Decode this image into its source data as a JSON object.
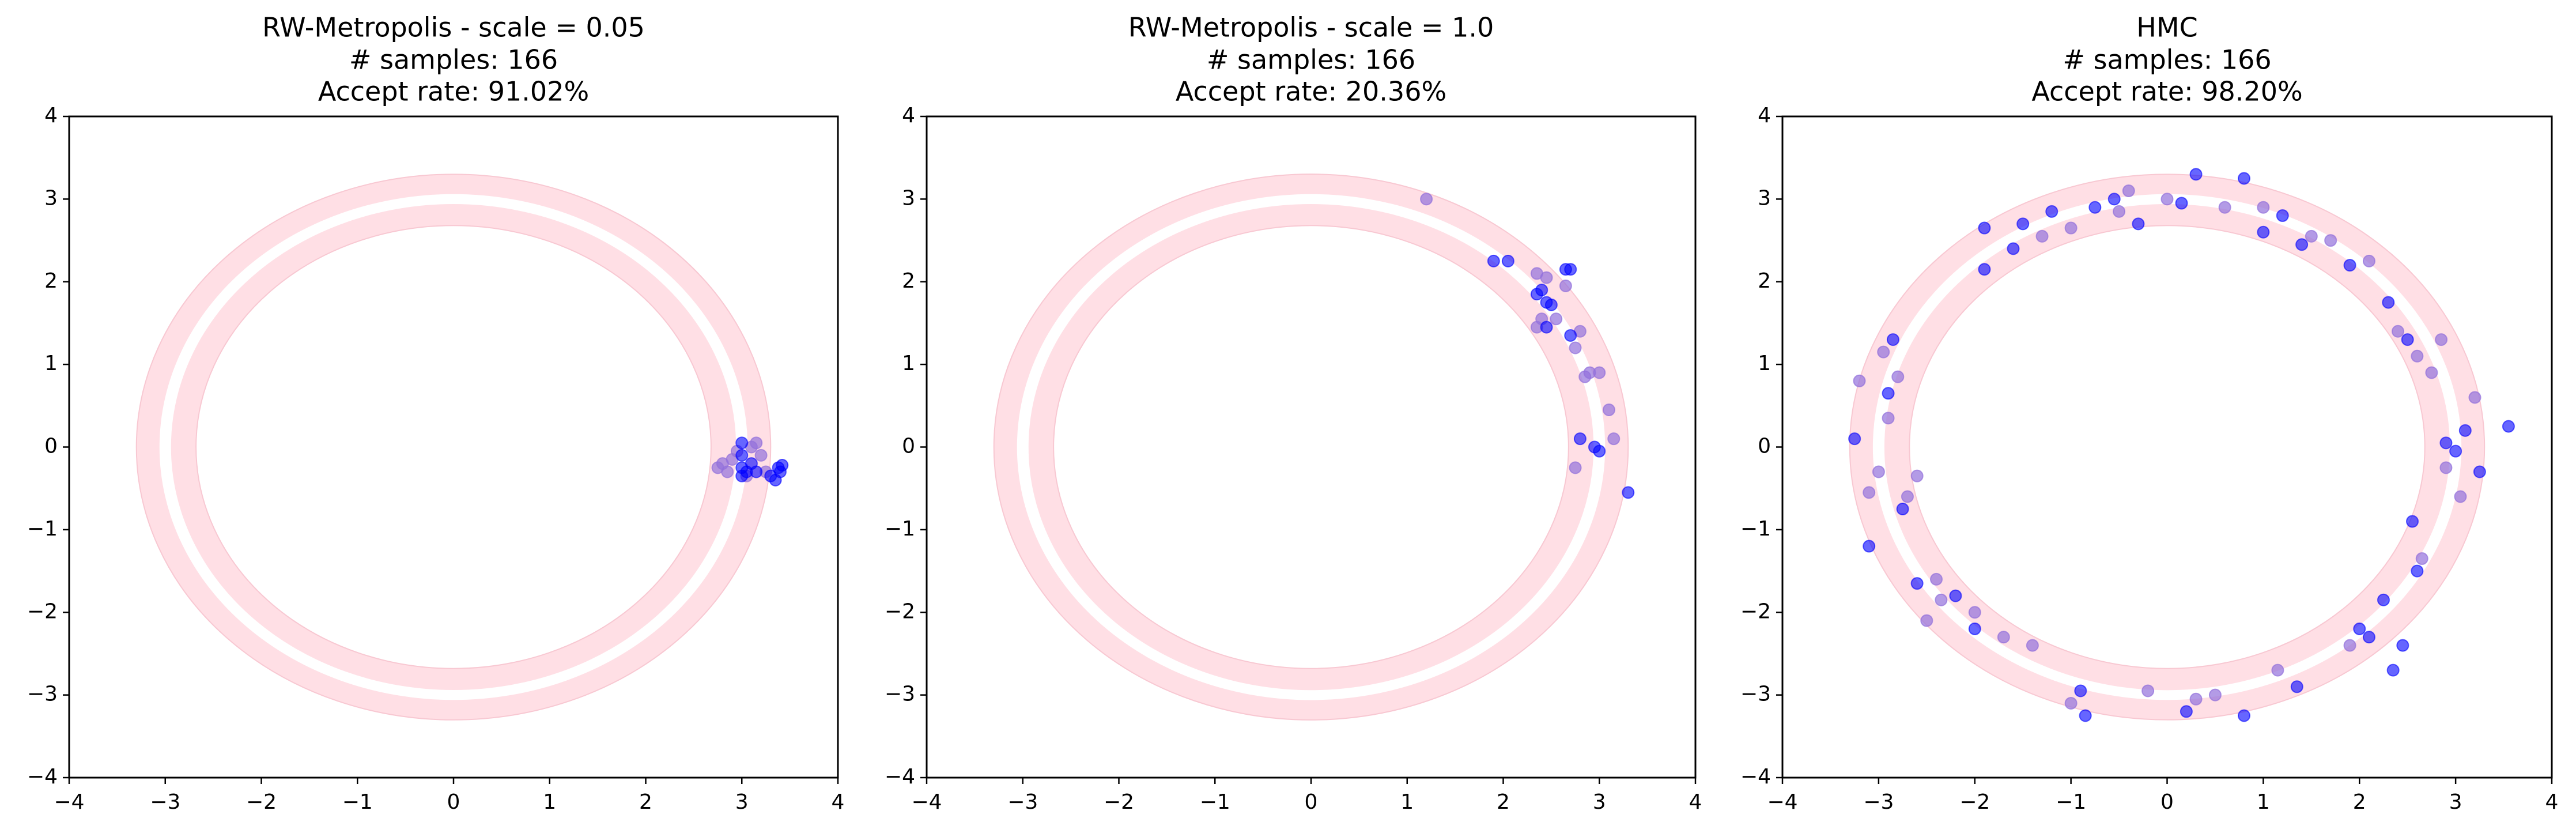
{
  "chart_data": [
    {
      "type": "scatter",
      "title": [
        "RW-Metropolis - scale = 0.05",
        "# samples: 166",
        "Accept rate: 91.02%"
      ],
      "xlim": [
        -4,
        4
      ],
      "ylim": [
        -4,
        4
      ],
      "xticks": [
        {
          "value": -4,
          "label": "−4"
        },
        {
          "value": -3,
          "label": "−3"
        },
        {
          "value": -2,
          "label": "−2"
        },
        {
          "value": -1,
          "label": "−1"
        },
        0,
        1,
        2,
        3,
        4
      ],
      "yticks": [
        {
          "value": -4,
          "label": "−4"
        },
        {
          "value": -3,
          "label": "−3"
        },
        {
          "value": -2,
          "label": "−2"
        },
        {
          "value": -1,
          "label": "−1"
        },
        0,
        1,
        2,
        3,
        4
      ],
      "series": [
        {
          "color": "#9370db",
          "alpha": 0.7,
          "x": [
            2.8,
            2.75,
            2.9,
            2.85,
            3.1,
            3.15,
            3.2,
            3.25,
            2.95,
            3.05
          ],
          "y": [
            -0.2,
            -0.25,
            -0.15,
            -0.3,
            0.0,
            0.05,
            -0.1,
            -0.3,
            -0.05,
            -0.35
          ]
        },
        {
          "color": "#0000ff",
          "alpha": 0.6,
          "x": [
            3.0,
            3.0,
            3.0,
            3.0,
            3.05,
            3.1,
            3.15,
            3.3,
            3.35,
            3.4,
            3.42,
            3.38
          ],
          "y": [
            0.05,
            -0.1,
            -0.25,
            -0.35,
            -0.3,
            -0.2,
            -0.3,
            -0.35,
            -0.4,
            -0.3,
            -0.22,
            -0.25
          ]
        }
      ]
    },
    {
      "type": "scatter",
      "title": [
        "RW-Metropolis - scale = 1.0",
        "# samples: 166",
        "Accept rate: 20.36%"
      ],
      "xlim": [
        -4,
        4
      ],
      "ylim": [
        -4,
        4
      ],
      "xticks": [
        {
          "value": -4,
          "label": "−4"
        },
        {
          "value": -3,
          "label": "−3"
        },
        {
          "value": -2,
          "label": "−2"
        },
        {
          "value": -1,
          "label": "−1"
        },
        0,
        1,
        2,
        3,
        4
      ],
      "yticks": [
        {
          "value": -4,
          "label": "−4"
        },
        {
          "value": -3,
          "label": "−3"
        },
        {
          "value": -2,
          "label": "−2"
        },
        {
          "value": -1,
          "label": "−1"
        },
        0,
        1,
        2,
        3,
        4
      ],
      "series": [
        {
          "color": "#9370db",
          "alpha": 0.7,
          "x": [
            1.2,
            2.35,
            2.45,
            2.55,
            2.4,
            2.8,
            2.75,
            2.85,
            2.9,
            3.0,
            3.1,
            3.15,
            2.75,
            2.65,
            2.35
          ],
          "y": [
            3.0,
            2.1,
            2.05,
            1.55,
            1.55,
            1.4,
            1.2,
            0.85,
            0.9,
            0.9,
            0.45,
            0.1,
            -0.25,
            1.95,
            1.45
          ]
        },
        {
          "color": "#0000ff",
          "alpha": 0.6,
          "x": [
            1.9,
            2.05,
            2.35,
            2.4,
            2.45,
            2.5,
            2.7,
            2.65,
            2.7,
            2.95,
            3.0,
            3.3,
            2.8,
            2.45
          ],
          "y": [
            2.25,
            2.25,
            1.85,
            1.9,
            1.75,
            1.72,
            2.15,
            2.15,
            1.35,
            0.0,
            -0.05,
            -0.55,
            0.1,
            1.45
          ]
        }
      ]
    },
    {
      "type": "scatter",
      "title": [
        "HMC",
        "# samples: 166",
        "Accept rate: 98.20%"
      ],
      "xlim": [
        -4,
        4
      ],
      "ylim": [
        -4,
        4
      ],
      "xticks": [
        {
          "value": -4,
          "label": "−4"
        },
        {
          "value": -3,
          "label": "−3"
        },
        {
          "value": -2,
          "label": "−2"
        },
        {
          "value": -1,
          "label": "−1"
        },
        0,
        1,
        2,
        3,
        4
      ],
      "yticks": [
        {
          "value": -4,
          "label": "−4"
        },
        {
          "value": -3,
          "label": "−3"
        },
        {
          "value": -2,
          "label": "−2"
        },
        {
          "value": -1,
          "label": "−1"
        },
        0,
        1,
        2,
        3,
        4
      ],
      "series": [
        {
          "color": "#9370db",
          "alpha": 0.7,
          "x": [
            -3.2,
            -3.1,
            -3.0,
            -2.95,
            -2.9,
            -2.8,
            -2.7,
            -2.6,
            -2.4,
            -2.35,
            -2.0,
            -1.7,
            -1.4,
            -1.3,
            -1.0,
            -0.5,
            -0.4,
            -0.2,
            0.0,
            0.5,
            0.6,
            1.0,
            1.15,
            1.5,
            1.7,
            1.9,
            2.1,
            2.4,
            2.6,
            2.75,
            2.9,
            3.05,
            3.2,
            2.85,
            2.65,
            -2.5,
            -1.0,
            0.3
          ],
          "y": [
            0.8,
            -0.55,
            -0.3,
            1.15,
            0.35,
            0.85,
            -0.6,
            -0.35,
            -1.6,
            -1.85,
            -2.0,
            -2.3,
            -2.4,
            2.55,
            2.65,
            2.85,
            3.1,
            -2.95,
            3.0,
            -3.0,
            2.9,
            2.9,
            -2.7,
            2.55,
            2.5,
            -2.4,
            2.25,
            1.4,
            1.1,
            0.9,
            -0.25,
            -0.6,
            0.6,
            1.3,
            -1.35,
            -2.1,
            -3.1,
            -3.05
          ]
        },
        {
          "color": "#0000ff",
          "alpha": 0.6,
          "x": [
            -3.25,
            -3.1,
            -2.9,
            -2.85,
            -2.75,
            -2.6,
            -2.2,
            -2.0,
            -1.9,
            -1.9,
            -1.6,
            -1.5,
            -1.2,
            -0.75,
            -0.55,
            -0.9,
            -0.85,
            -0.3,
            0.15,
            0.2,
            0.3,
            0.8,
            0.8,
            1.0,
            1.2,
            1.35,
            1.4,
            1.9,
            2.0,
            2.1,
            2.25,
            2.3,
            2.5,
            2.55,
            2.6,
            2.9,
            3.0,
            3.1,
            3.25,
            3.55,
            2.45,
            2.35
          ],
          "y": [
            0.1,
            -1.2,
            0.65,
            1.3,
            -0.75,
            -1.65,
            -1.8,
            -2.2,
            2.15,
            2.65,
            2.4,
            2.7,
            2.85,
            2.9,
            3.0,
            -2.95,
            -3.25,
            2.7,
            2.95,
            -3.2,
            3.3,
            3.25,
            -3.25,
            2.6,
            2.8,
            -2.9,
            2.45,
            2.2,
            -2.2,
            -2.3,
            -1.85,
            1.75,
            1.3,
            -0.9,
            -1.5,
            0.05,
            -0.05,
            0.2,
            -0.3,
            0.25,
            -2.4,
            -2.7
          ]
        }
      ]
    }
  ]
}
